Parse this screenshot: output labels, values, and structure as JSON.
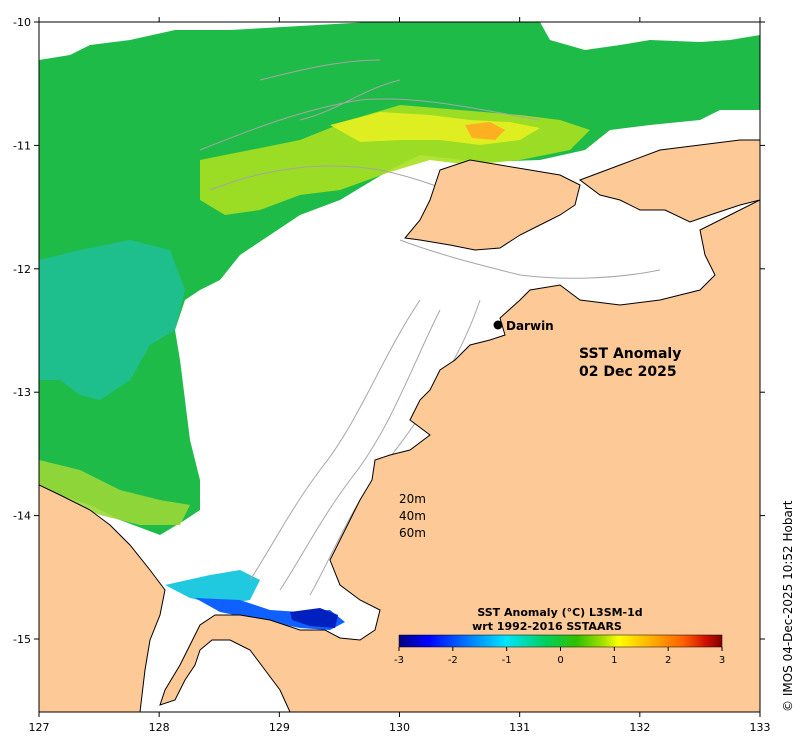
{
  "map": {
    "title_line1": "SST Anomaly",
    "title_line2": "02 Dec 2025",
    "place": "Darwin",
    "credit": "© IMOS 04-Dec-2025 10:52 Hobart",
    "x_ticks": [
      "127",
      "128",
      "129",
      "130",
      "131",
      "132",
      "133"
    ],
    "y_ticks": [
      "-10",
      "-11",
      "-12",
      "-13",
      "-14",
      "-15"
    ],
    "depth_contours": [
      "20m",
      "40m",
      "60m"
    ],
    "colors": {
      "land": "#fdc996",
      "ocean_nodata": "#ffffff",
      "contour": "#a6a6a6",
      "coast": "#000000"
    }
  },
  "colorbar": {
    "title_line1": "SST Anomaly (°C) L3SM-1d",
    "title_line2": "wrt 1992-2016 SSTAARS",
    "ticks": [
      "-3",
      "-2",
      "-1",
      "0",
      "1",
      "2",
      "3"
    ],
    "range": [
      -3,
      3
    ],
    "colors": [
      "#00007f",
      "#0000ff",
      "#0080ff",
      "#00e5ff",
      "#00d060",
      "#30c000",
      "#a0e000",
      "#ffff00",
      "#ffb000",
      "#ff6000",
      "#d01000",
      "#7f0000"
    ]
  }
}
